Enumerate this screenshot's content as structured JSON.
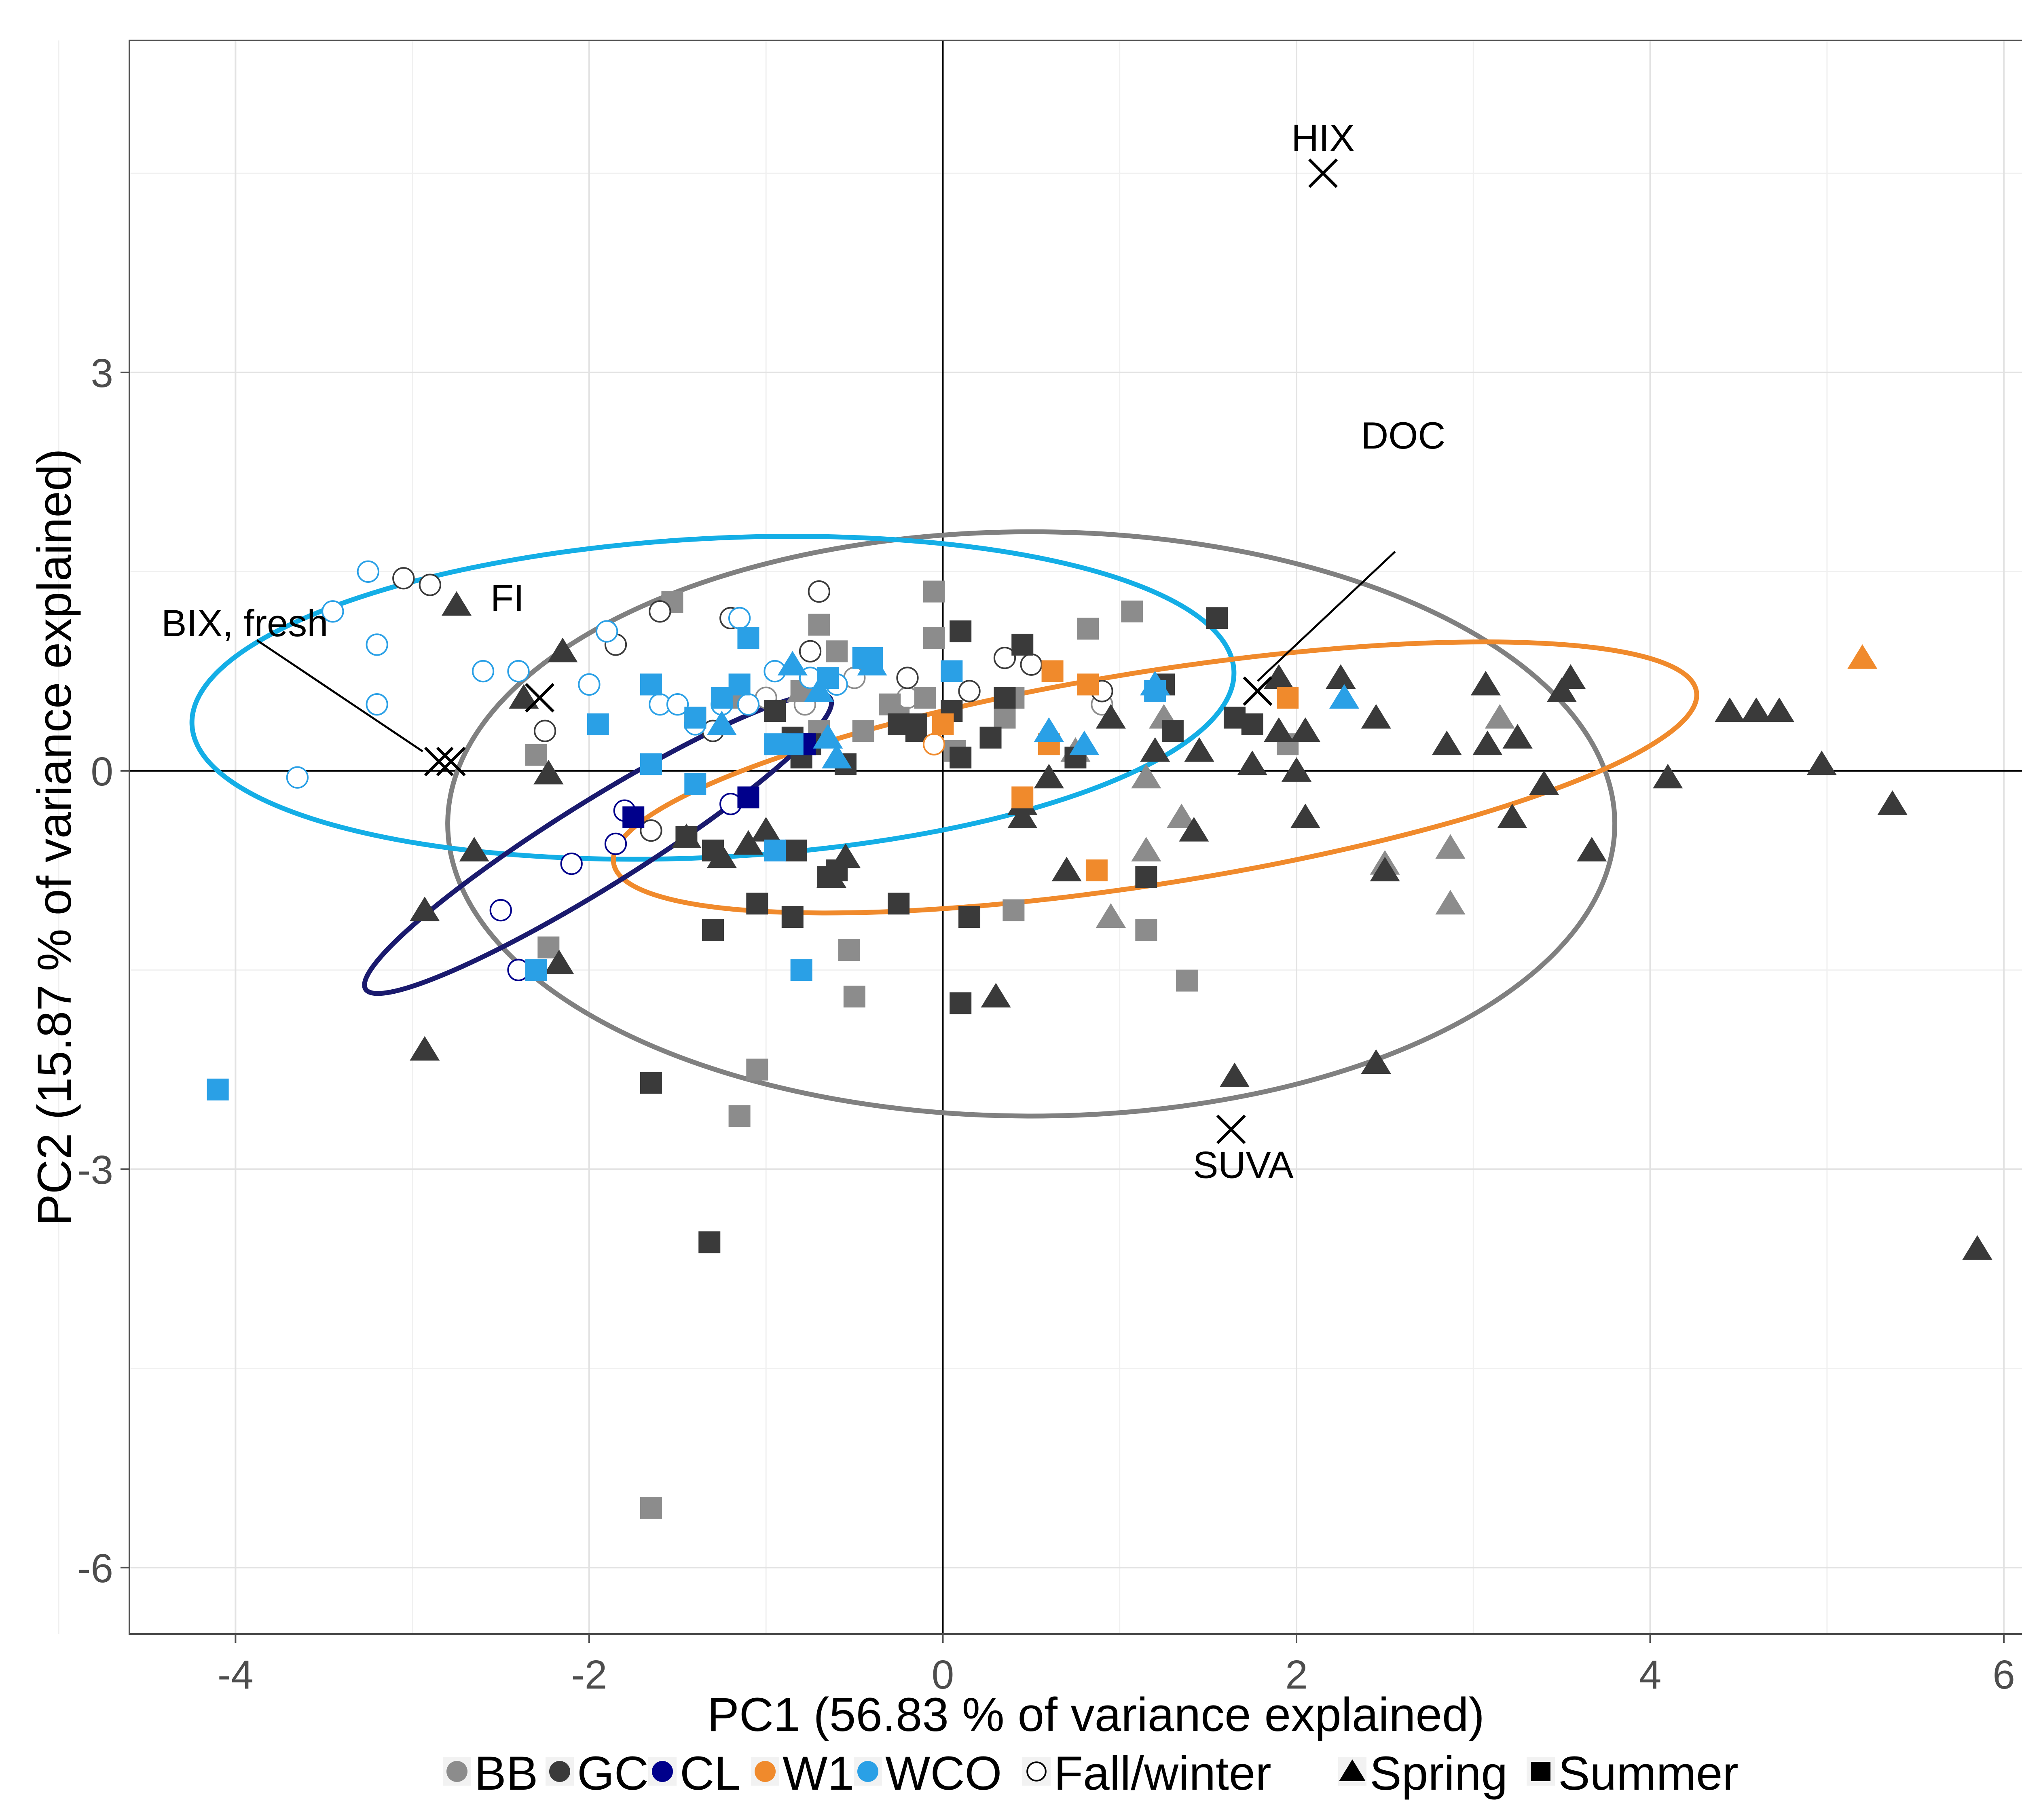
{
  "chart_data": {
    "type": "scatter",
    "title": "",
    "xlabel": "PC1 (56.83 % of variance explained)",
    "ylabel": "PC2 (15.87 % of variance explained)",
    "xlim": [
      -4.6,
      6.4
    ],
    "ylim": [
      -6.5,
      5.5
    ],
    "x_ticks": [
      -4,
      -2,
      0,
      2,
      4,
      6
    ],
    "x_tick_labels": [
      "-4",
      "-2",
      "0",
      "2",
      "4",
      "6"
    ],
    "y_ticks": [
      -6,
      -3,
      0,
      3
    ],
    "y_tick_labels": [
      "-6",
      "-3",
      "0",
      "3"
    ],
    "grid": true,
    "colors": {
      "BB": "#8c8c8c",
      "GC": "#3a3a3a",
      "CL": "#00008b",
      "W1": "#f08a2c",
      "WCO": "#2aa0e6",
      "BB_ellipse": "#808080",
      "CL_ellipse": "#1a1a6e",
      "W1_ellipse": "#f08a2c",
      "WCO_ellipse": "#14aee6"
    },
    "legend": {
      "position": "bottom",
      "site_entries": [
        "BB",
        "GC",
        "CL",
        "W1",
        "WCO"
      ],
      "season_entries": [
        "Fall/winter",
        "Spring",
        "Summer"
      ]
    },
    "loadings": [
      {
        "label": "HIX",
        "x": 2.15,
        "y": 4.5
      },
      {
        "label": "DOC",
        "x": 1.78,
        "y": 0.6
      },
      {
        "label": "FI",
        "x": -2.28,
        "y": 0.55
      },
      {
        "label": "BIX, fresh",
        "x": -2.85,
        "y": 0.07
      },
      {
        "label": "SUVA",
        "x": 1.63,
        "y": -2.7
      }
    ],
    "ellipses": [
      {
        "site": "BB",
        "cx": 0.5,
        "cy": -0.4,
        "rx": 3.3,
        "ry": 2.2,
        "angle_deg": 0
      },
      {
        "site": "WCO",
        "cx": -1.3,
        "cy": 0.55,
        "rx": 2.95,
        "ry": 1.2,
        "angle_deg": 3
      },
      {
        "site": "W1",
        "cx": 1.2,
        "cy": -0.05,
        "rx": 3.1,
        "ry": 0.8,
        "angle_deg": 9
      },
      {
        "site": "CL",
        "cx": -1.95,
        "cy": -0.55,
        "rx": 1.55,
        "ry": 0.32,
        "angle_deg": 32
      }
    ],
    "series": [
      {
        "name": "BB",
        "season": "Fall/winter",
        "points": [
          [
            -0.78,
            0.5
          ],
          [
            -1.0,
            0.55
          ],
          [
            -0.2,
            0.55
          ],
          [
            0.9,
            0.5
          ],
          [
            -0.5,
            0.7
          ]
        ]
      },
      {
        "name": "BB",
        "season": "Spring",
        "points": [
          [
            1.15,
            -0.05
          ],
          [
            1.35,
            -0.35
          ],
          [
            1.15,
            -0.6
          ],
          [
            0.95,
            -1.1
          ],
          [
            1.25,
            0.4
          ],
          [
            2.5,
            -0.7
          ],
          [
            2.87,
            -1.0
          ],
          [
            2.87,
            -0.58
          ],
          [
            3.15,
            0.4
          ],
          [
            0.75,
            0.15
          ],
          [
            -0.8,
            0.6
          ]
        ]
      },
      {
        "name": "BB",
        "season": "Summer",
        "points": [
          [
            -1.53,
            1.27
          ],
          [
            -1.65,
            -5.55
          ],
          [
            -1.05,
            -2.25
          ],
          [
            -1.15,
            -2.6
          ],
          [
            -0.53,
            -1.35
          ],
          [
            -0.5,
            -1.7
          ],
          [
            -0.7,
            1.1
          ],
          [
            -0.8,
            0.6
          ],
          [
            -0.6,
            0.9
          ],
          [
            -0.45,
            0.3
          ],
          [
            -0.7,
            0.3
          ],
          [
            -0.3,
            0.5
          ],
          [
            -0.25,
            0.4
          ],
          [
            -0.05,
            1.0
          ],
          [
            -0.05,
            1.35
          ],
          [
            0.07,
            0.15
          ],
          [
            0.35,
            0.4
          ],
          [
            0.4,
            0.55
          ],
          [
            0.82,
            1.07
          ],
          [
            1.07,
            1.2
          ],
          [
            1.15,
            -1.2
          ],
          [
            1.38,
            -1.58
          ],
          [
            1.95,
            0.2
          ],
          [
            0.4,
            -1.05
          ],
          [
            -2.23,
            -1.33
          ],
          [
            -2.3,
            0.12
          ],
          [
            -1.2,
            0.55
          ],
          [
            -0.1,
            0.55
          ]
        ]
      },
      {
        "name": "GC",
        "season": "Fall/winter",
        "points": [
          [
            -3.05,
            1.45
          ],
          [
            -2.9,
            1.4
          ],
          [
            -2.25,
            0.3
          ],
          [
            -1.85,
            0.95
          ],
          [
            -1.6,
            1.2
          ],
          [
            -1.2,
            1.15
          ],
          [
            -0.7,
            1.35
          ],
          [
            -0.75,
            0.9
          ],
          [
            0.35,
            0.85
          ],
          [
            0.5,
            0.8
          ],
          [
            0.9,
            0.6
          ],
          [
            0.15,
            0.6
          ],
          [
            -0.2,
            0.7
          ],
          [
            -1.3,
            0.3
          ],
          [
            -1.65,
            -0.45
          ]
        ]
      },
      {
        "name": "GC",
        "season": "Spring",
        "points": [
          [
            -2.75,
            1.25
          ],
          [
            -2.37,
            0.55
          ],
          [
            -2.15,
            0.9
          ],
          [
            -2.23,
            -0.02
          ],
          [
            -2.65,
            -0.6
          ],
          [
            -2.93,
            -1.05
          ],
          [
            -2.93,
            -2.1
          ],
          [
            -2.17,
            -1.45
          ],
          [
            -1.0,
            -0.45
          ],
          [
            -1.1,
            -0.55
          ],
          [
            -1.25,
            -0.65
          ],
          [
            -0.55,
            -0.65
          ],
          [
            -0.63,
            -0.8
          ],
          [
            -1.45,
            -0.5
          ],
          [
            0.45,
            -0.25
          ],
          [
            0.45,
            -0.35
          ],
          [
            0.6,
            -0.05
          ],
          [
            0.7,
            -0.75
          ],
          [
            0.95,
            0.4
          ],
          [
            1.2,
            0.15
          ],
          [
            1.45,
            0.15
          ],
          [
            1.42,
            -0.45
          ],
          [
            1.75,
            0.05
          ],
          [
            1.9,
            0.7
          ],
          [
            1.9,
            0.3
          ],
          [
            2.0,
            0.0
          ],
          [
            2.05,
            0.3
          ],
          [
            2.05,
            -0.35
          ],
          [
            2.25,
            0.7
          ],
          [
            2.45,
            0.4
          ],
          [
            2.5,
            -0.75
          ],
          [
            2.85,
            0.2
          ],
          [
            3.07,
            0.65
          ],
          [
            3.08,
            0.2
          ],
          [
            3.22,
            -0.35
          ],
          [
            3.25,
            0.25
          ],
          [
            3.4,
            -0.1
          ],
          [
            3.5,
            0.6
          ],
          [
            3.55,
            0.7
          ],
          [
            3.67,
            -0.6
          ],
          [
            4.1,
            -0.05
          ],
          [
            4.45,
            0.45
          ],
          [
            4.6,
            0.45
          ],
          [
            4.73,
            0.45
          ],
          [
            4.97,
            0.05
          ],
          [
            5.37,
            -0.25
          ],
          [
            5.85,
            -3.6
          ],
          [
            2.45,
            -2.2
          ],
          [
            1.65,
            -2.3
          ],
          [
            0.3,
            -1.7
          ]
        ]
      },
      {
        "name": "GC",
        "season": "Summer",
        "points": [
          [
            -1.65,
            -2.35
          ],
          [
            -1.32,
            -3.55
          ],
          [
            -1.3,
            -1.2
          ],
          [
            -1.05,
            -1.0
          ],
          [
            -0.85,
            -1.1
          ],
          [
            -0.6,
            -0.75
          ],
          [
            -0.65,
            -0.8
          ],
          [
            -0.83,
            -0.6
          ],
          [
            -1.4,
            0.4
          ],
          [
            -0.95,
            0.45
          ],
          [
            -0.85,
            0.25
          ],
          [
            -0.8,
            0.1
          ],
          [
            -0.75,
            0.2
          ],
          [
            -0.55,
            0.05
          ],
          [
            -0.25,
            -1.0
          ],
          [
            -0.25,
            0.35
          ],
          [
            -0.15,
            0.3
          ],
          [
            -0.15,
            0.35
          ],
          [
            0.05,
            0.45
          ],
          [
            0.1,
            0.1
          ],
          [
            0.1,
            1.05
          ],
          [
            0.15,
            -1.1
          ],
          [
            0.27,
            0.25
          ],
          [
            0.35,
            0.55
          ],
          [
            0.45,
            0.95
          ],
          [
            0.1,
            -1.75
          ],
          [
            0.75,
            0.1
          ],
          [
            1.15,
            -0.8
          ],
          [
            1.25,
            0.65
          ],
          [
            1.3,
            0.3
          ],
          [
            1.55,
            1.15
          ],
          [
            1.65,
            0.4
          ],
          [
            1.75,
            0.35
          ],
          [
            -1.45,
            -0.5
          ],
          [
            -1.3,
            -0.6
          ]
        ]
      },
      {
        "name": "CL",
        "season": "Fall/winter",
        "points": [
          [
            -2.5,
            -1.05
          ],
          [
            -2.4,
            -1.5
          ],
          [
            -2.1,
            -0.7
          ],
          [
            -1.85,
            -0.55
          ],
          [
            -1.8,
            -0.3
          ],
          [
            -1.2,
            -0.25
          ]
        ]
      },
      {
        "name": "CL",
        "season": "Summer",
        "points": [
          [
            -1.75,
            -0.35
          ],
          [
            -1.1,
            -0.2
          ],
          [
            -0.8,
            0.2
          ],
          [
            -0.78,
            0.2
          ]
        ]
      },
      {
        "name": "W1",
        "season": "Fall/winter",
        "points": [
          [
            -0.05,
            0.2
          ]
        ]
      },
      {
        "name": "W1",
        "season": "Spring",
        "points": [
          [
            5.2,
            0.85
          ]
        ]
      },
      {
        "name": "W1",
        "season": "Summer",
        "points": [
          [
            -0.0,
            0.35
          ],
          [
            0.45,
            -0.2
          ],
          [
            0.6,
            0.2
          ],
          [
            0.62,
            0.75
          ],
          [
            0.82,
            0.65
          ],
          [
            0.87,
            -0.75
          ],
          [
            1.95,
            0.55
          ]
        ]
      },
      {
        "name": "WCO",
        "season": "Fall/winter",
        "points": [
          [
            -3.65,
            -0.05
          ],
          [
            -3.45,
            1.2
          ],
          [
            -3.25,
            1.5
          ],
          [
            -3.2,
            0.95
          ],
          [
            -3.2,
            0.5
          ],
          [
            -2.6,
            0.75
          ],
          [
            -2.4,
            0.75
          ],
          [
            -2.0,
            0.65
          ],
          [
            -1.9,
            1.05
          ],
          [
            -1.6,
            0.5
          ],
          [
            -1.5,
            0.5
          ],
          [
            -1.4,
            0.35
          ],
          [
            -1.25,
            0.5
          ],
          [
            -1.15,
            1.15
          ],
          [
            -1.1,
            0.5
          ],
          [
            -0.95,
            0.75
          ],
          [
            -0.75,
            0.7
          ],
          [
            -0.6,
            0.65
          ]
        ]
      },
      {
        "name": "WCO",
        "season": "Spring",
        "points": [
          [
            -0.85,
            0.8
          ],
          [
            -0.7,
            0.6
          ],
          [
            -0.65,
            0.25
          ],
          [
            -0.6,
            0.1
          ],
          [
            -0.4,
            0.8
          ],
          [
            0.6,
            0.3
          ],
          [
            0.8,
            0.2
          ],
          [
            1.2,
            0.65
          ],
          [
            2.27,
            0.55
          ],
          [
            -1.25,
            0.35
          ]
        ]
      },
      {
        "name": "WCO",
        "season": "Summer",
        "points": [
          [
            -4.1,
            -2.4
          ],
          [
            -2.3,
            -1.5
          ],
          [
            -1.95,
            0.35
          ],
          [
            -1.65,
            0.65
          ],
          [
            -1.65,
            0.05
          ],
          [
            -1.4,
            0.4
          ],
          [
            -1.4,
            -0.1
          ],
          [
            -1.25,
            0.55
          ],
          [
            -1.15,
            0.65
          ],
          [
            -1.1,
            1.0
          ],
          [
            -0.95,
            -0.6
          ],
          [
            -0.95,
            0.2
          ],
          [
            -0.85,
            0.2
          ],
          [
            -0.8,
            -1.5
          ],
          [
            -0.65,
            0.7
          ],
          [
            -0.45,
            0.85
          ],
          [
            -0.4,
            0.85
          ],
          [
            0.05,
            0.75
          ],
          [
            1.2,
            0.6
          ]
        ]
      }
    ]
  }
}
